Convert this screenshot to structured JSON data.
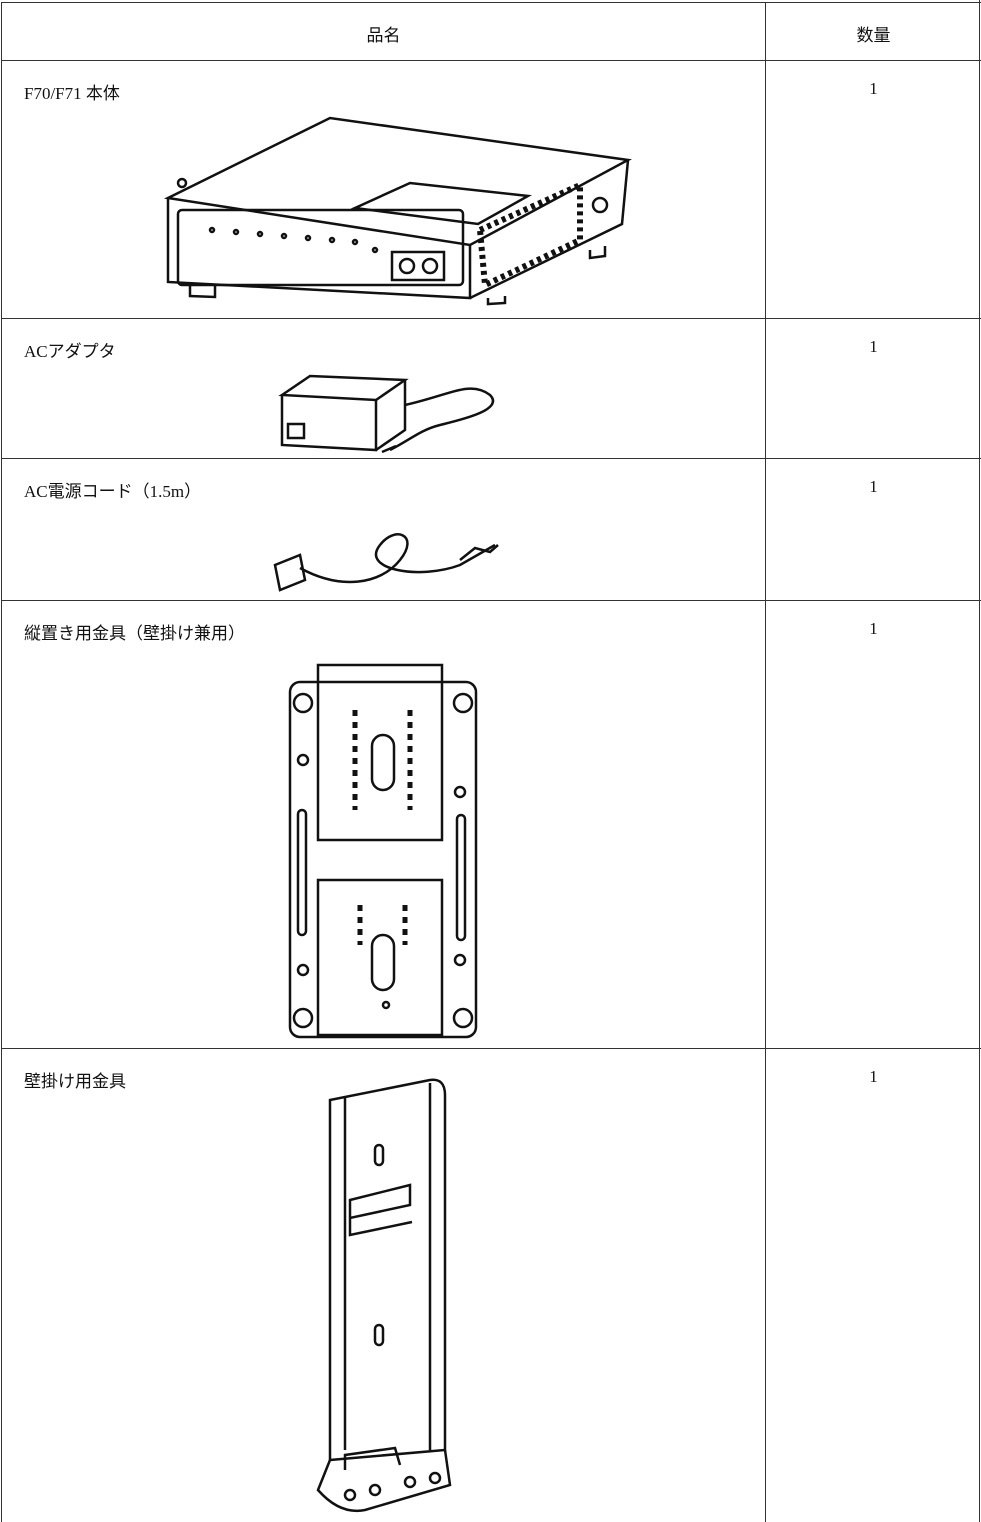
{
  "table": {
    "header": [
      "品名",
      "数量"
    ],
    "rows": [
      [
        "F70/F71 本体",
        1
      ],
      [
        "ACアダプタ",
        1
      ],
      [
        "AC電源コード（1.5m）",
        1
      ],
      [
        "縦置き用金具（壁掛け兼用）",
        1
      ],
      [
        "壁掛け用金具",
        1
      ]
    ]
  }
}
